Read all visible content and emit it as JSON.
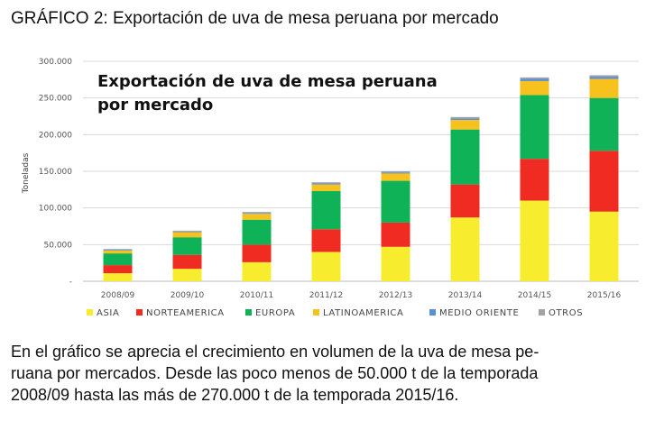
{
  "heading": "GRÁFICO 2: Exportación de uva de mesa peruana por mercado",
  "caption_lines": [
    "En el gráfico se aprecia el crecimiento en volumen de la uva de mesa pe-",
    "ruana por mercados. Desde las poco menos de 50.000 t de la temporada",
    "2008/09 hasta las más de 270.000 t de la temporada 2015/16."
  ],
  "chart_data": {
    "type": "bar",
    "stacked": true,
    "title_lines": [
      "Exportación de uva de mesa peruana",
      "por mercado"
    ],
    "xlabel": "",
    "ylabel": "Toneladas",
    "ylim": [
      0,
      300000
    ],
    "yticks": [
      0,
      50000,
      100000,
      150000,
      200000,
      250000,
      300000
    ],
    "ytick_labels": [
      "-",
      "50.000",
      "100.000",
      "150.000",
      "200.000",
      "250.000",
      "300.000"
    ],
    "categories": [
      "2008/09",
      "2009/10",
      "2010/11",
      "2011/12",
      "2012/13",
      "2013/14",
      "2014/15",
      "2015/16"
    ],
    "grid": true,
    "legend_position": "bottom",
    "series": [
      {
        "name": "ASIA",
        "color": "#f7ec2e",
        "values": [
          11000,
          17000,
          26000,
          40000,
          47000,
          87000,
          110000,
          95000
        ]
      },
      {
        "name": "NORTEAMERICA",
        "color": "#ef2b22",
        "values": [
          11000,
          19000,
          24000,
          31000,
          33000,
          45000,
          57000,
          83000
        ]
      },
      {
        "name": "EUROPA",
        "color": "#0fb257",
        "values": [
          16000,
          24000,
          34000,
          52000,
          57000,
          75000,
          87000,
          72000
        ]
      },
      {
        "name": "LATINOAMERICA",
        "color": "#f7c21e",
        "values": [
          4000,
          7000,
          8000,
          9000,
          10000,
          13000,
          19000,
          26000
        ]
      },
      {
        "name": "MEDIO ORIENTE",
        "color": "#5b8fd6",
        "values": [
          1000,
          1000,
          1000,
          1500,
          1500,
          2000,
          3000,
          3000
        ]
      },
      {
        "name": "OTROS",
        "color": "#a3a3a3",
        "values": [
          1000,
          1000,
          1500,
          1500,
          1500,
          2000,
          2000,
          2000
        ]
      }
    ]
  }
}
